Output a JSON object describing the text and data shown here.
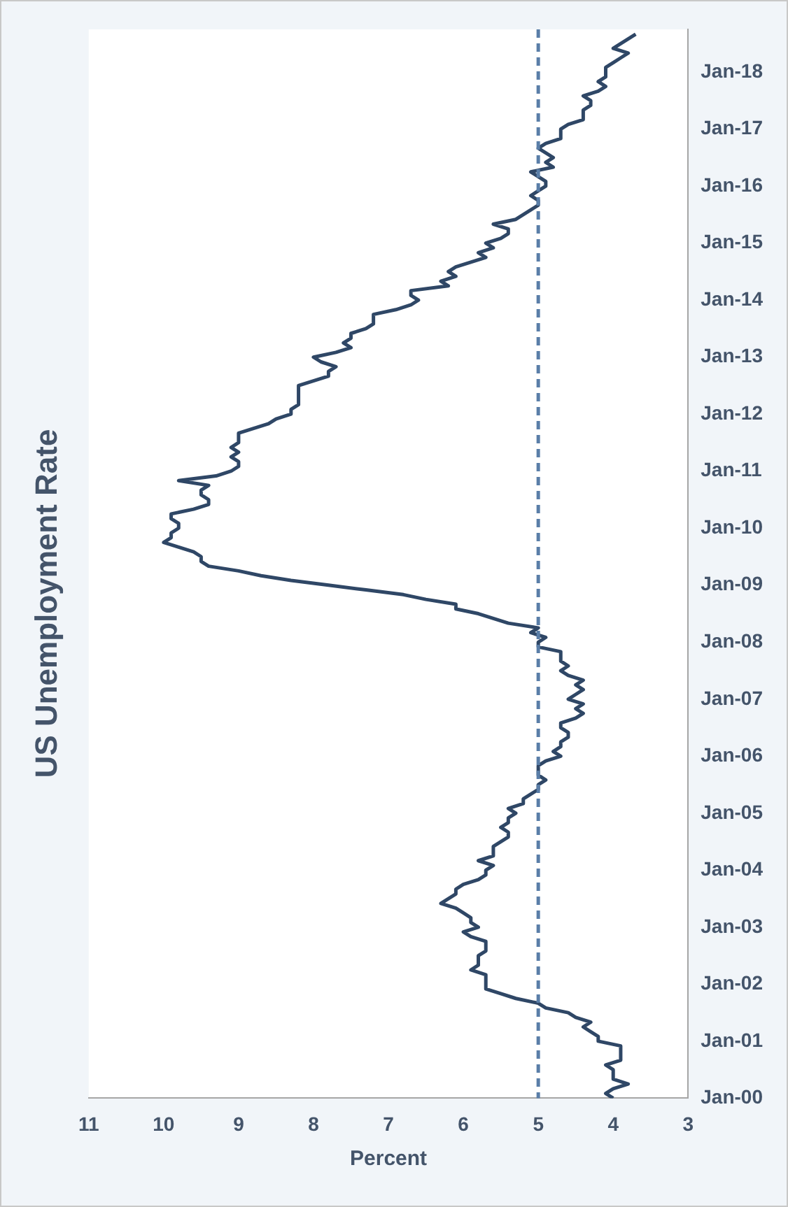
{
  "chart_data": {
    "type": "line",
    "title": "US Unemployment Rate",
    "x": [
      "2000-01",
      "2000-02",
      "2000-03",
      "2000-04",
      "2000-05",
      "2000-06",
      "2000-07",
      "2000-08",
      "2000-09",
      "2000-10",
      "2000-11",
      "2000-12",
      "2001-01",
      "2001-02",
      "2001-03",
      "2001-04",
      "2001-05",
      "2001-06",
      "2001-07",
      "2001-08",
      "2001-09",
      "2001-10",
      "2001-11",
      "2001-12",
      "2002-01",
      "2002-02",
      "2002-03",
      "2002-04",
      "2002-05",
      "2002-06",
      "2002-07",
      "2002-08",
      "2002-09",
      "2002-10",
      "2002-11",
      "2002-12",
      "2003-01",
      "2003-02",
      "2003-03",
      "2003-04",
      "2003-05",
      "2003-06",
      "2003-07",
      "2003-08",
      "2003-09",
      "2003-10",
      "2003-11",
      "2003-12",
      "2004-01",
      "2004-02",
      "2004-03",
      "2004-04",
      "2004-05",
      "2004-06",
      "2004-07",
      "2004-08",
      "2004-09",
      "2004-10",
      "2004-11",
      "2004-12",
      "2005-01",
      "2005-02",
      "2005-03",
      "2005-04",
      "2005-05",
      "2005-06",
      "2005-07",
      "2005-08",
      "2005-09",
      "2005-10",
      "2005-11",
      "2005-12",
      "2006-01",
      "2006-02",
      "2006-03",
      "2006-04",
      "2006-05",
      "2006-06",
      "2006-07",
      "2006-08",
      "2006-09",
      "2006-10",
      "2006-11",
      "2006-12",
      "2007-01",
      "2007-02",
      "2007-03",
      "2007-04",
      "2007-05",
      "2007-06",
      "2007-07",
      "2007-08",
      "2007-09",
      "2007-10",
      "2007-11",
      "2007-12",
      "2008-01",
      "2008-02",
      "2008-03",
      "2008-04",
      "2008-05",
      "2008-06",
      "2008-07",
      "2008-08",
      "2008-09",
      "2008-10",
      "2008-11",
      "2008-12",
      "2009-01",
      "2009-02",
      "2009-03",
      "2009-04",
      "2009-05",
      "2009-06",
      "2009-07",
      "2009-08",
      "2009-09",
      "2009-10",
      "2009-11",
      "2009-12",
      "2010-01",
      "2010-02",
      "2010-03",
      "2010-04",
      "2010-05",
      "2010-06",
      "2010-07",
      "2010-08",
      "2010-09",
      "2010-10",
      "2010-11",
      "2010-12",
      "2011-01",
      "2011-02",
      "2011-03",
      "2011-04",
      "2011-05",
      "2011-06",
      "2011-07",
      "2011-08",
      "2011-09",
      "2011-10",
      "2011-11",
      "2011-12",
      "2012-01",
      "2012-02",
      "2012-03",
      "2012-04",
      "2012-05",
      "2012-06",
      "2012-07",
      "2012-08",
      "2012-09",
      "2012-10",
      "2012-11",
      "2012-12",
      "2013-01",
      "2013-02",
      "2013-03",
      "2013-04",
      "2013-05",
      "2013-06",
      "2013-07",
      "2013-08",
      "2013-09",
      "2013-10",
      "2013-11",
      "2013-12",
      "2014-01",
      "2014-02",
      "2014-03",
      "2014-04",
      "2014-05",
      "2014-06",
      "2014-07",
      "2014-08",
      "2014-09",
      "2014-10",
      "2014-11",
      "2014-12",
      "2015-01",
      "2015-02",
      "2015-03",
      "2015-04",
      "2015-05",
      "2015-06",
      "2015-07",
      "2015-08",
      "2015-09",
      "2015-10",
      "2015-11",
      "2015-12",
      "2016-01",
      "2016-02",
      "2016-03",
      "2016-04",
      "2016-05",
      "2016-06",
      "2016-07",
      "2016-08",
      "2016-09",
      "2016-10",
      "2016-11",
      "2016-12",
      "2017-01",
      "2017-02",
      "2017-03",
      "2017-04",
      "2017-05",
      "2017-06",
      "2017-07",
      "2017-08",
      "2017-09",
      "2017-10",
      "2017-11",
      "2017-12",
      "2018-01",
      "2018-02",
      "2018-03",
      "2018-04",
      "2018-05",
      "2018-06",
      "2018-07",
      "2018-08",
      "2018-09"
    ],
    "series": [
      {
        "color": "#2f4766",
        "values": [
          4.0,
          4.1,
          4.0,
          3.8,
          4.0,
          4.0,
          4.0,
          4.1,
          3.9,
          3.9,
          3.9,
          3.9,
          4.2,
          4.2,
          4.3,
          4.4,
          4.3,
          4.5,
          4.6,
          4.9,
          5.0,
          5.3,
          5.5,
          5.7,
          5.7,
          5.7,
          5.7,
          5.9,
          5.8,
          5.8,
          5.8,
          5.7,
          5.7,
          5.7,
          5.9,
          6.0,
          5.8,
          5.9,
          5.9,
          6.0,
          6.1,
          6.3,
          6.2,
          6.1,
          6.1,
          6.0,
          5.8,
          5.7,
          5.7,
          5.6,
          5.8,
          5.6,
          5.6,
          5.6,
          5.5,
          5.4,
          5.4,
          5.5,
          5.4,
          5.4,
          5.3,
          5.4,
          5.2,
          5.2,
          5.1,
          5.0,
          5.0,
          4.9,
          5.0,
          5.0,
          5.0,
          4.9,
          4.7,
          4.8,
          4.7,
          4.7,
          4.6,
          4.6,
          4.7,
          4.7,
          4.5,
          4.4,
          4.5,
          4.4,
          4.6,
          4.5,
          4.4,
          4.5,
          4.4,
          4.6,
          4.7,
          4.6,
          4.7,
          4.7,
          4.7,
          5.0,
          5.0,
          4.9,
          5.1,
          5.0,
          5.4,
          5.6,
          5.8,
          6.1,
          6.1,
          6.5,
          6.8,
          7.3,
          7.8,
          8.3,
          8.7,
          9.0,
          9.4,
          9.5,
          9.5,
          9.6,
          9.8,
          10.0,
          9.9,
          9.9,
          9.8,
          9.8,
          9.9,
          9.9,
          9.6,
          9.4,
          9.4,
          9.5,
          9.5,
          9.4,
          9.8,
          9.3,
          9.1,
          9.0,
          9.0,
          9.1,
          9.0,
          9.1,
          9.0,
          9.0,
          9.0,
          8.8,
          8.6,
          8.5,
          8.3,
          8.3,
          8.2,
          8.2,
          8.2,
          8.2,
          8.2,
          8.0,
          7.8,
          7.8,
          7.7,
          7.9,
          8.0,
          7.7,
          7.5,
          7.6,
          7.5,
          7.5,
          7.3,
          7.2,
          7.2,
          7.2,
          6.9,
          6.7,
          6.6,
          6.7,
          6.7,
          6.2,
          6.3,
          6.1,
          6.2,
          6.1,
          5.9,
          5.7,
          5.8,
          5.6,
          5.7,
          5.5,
          5.4,
          5.4,
          5.6,
          5.3,
          5.2,
          5.1,
          5.0,
          5.0,
          5.1,
          5.0,
          4.9,
          4.9,
          5.0,
          5.1,
          4.8,
          4.9,
          4.8,
          4.9,
          5.0,
          4.9,
          4.7,
          4.7,
          4.7,
          4.6,
          4.4,
          4.4,
          4.4,
          4.3,
          4.3,
          4.4,
          4.2,
          4.1,
          4.2,
          4.1,
          4.1,
          4.1,
          4.0,
          3.9,
          3.8,
          4.0,
          3.9,
          3.8,
          3.7
        ]
      }
    ],
    "orientation": "horizontal",
    "xlabel": "Percent",
    "ylim": [
      "2000-01",
      "2018-10"
    ],
    "yticks": [
      {
        "value": "2000-01",
        "label": "Jan-00"
      },
      {
        "value": "2001-01",
        "label": "Jan-01"
      },
      {
        "value": "2002-01",
        "label": "Jan-02"
      },
      {
        "value": "2003-01",
        "label": "Jan-03"
      },
      {
        "value": "2004-01",
        "label": "Jan-04"
      },
      {
        "value": "2005-01",
        "label": "Jan-05"
      },
      {
        "value": "2006-01",
        "label": "Jan-06"
      },
      {
        "value": "2007-01",
        "label": "Jan-07"
      },
      {
        "value": "2008-01",
        "label": "Jan-08"
      },
      {
        "value": "2009-01",
        "label": "Jan-09"
      },
      {
        "value": "2010-01",
        "label": "Jan-10"
      },
      {
        "value": "2011-01",
        "label": "Jan-11"
      },
      {
        "value": "2012-01",
        "label": "Jan-12"
      },
      {
        "value": "2013-01",
        "label": "Jan-13"
      },
      {
        "value": "2014-01",
        "label": "Jan-14"
      },
      {
        "value": "2015-01",
        "label": "Jan-15"
      },
      {
        "value": "2016-01",
        "label": "Jan-16"
      },
      {
        "value": "2017-01",
        "label": "Jan-17"
      },
      {
        "value": "2018-01",
        "label": "Jan-18"
      }
    ],
    "xlim": [
      11,
      3
    ],
    "xticks": [
      11,
      10,
      9,
      8,
      7,
      6,
      5,
      4,
      3
    ],
    "ref_lines": [
      {
        "axis": "x",
        "value": 5,
        "color": "#5a7ea8",
        "line_style": "dashed"
      }
    ],
    "grid": false,
    "legend": false,
    "marker": "none",
    "line_style": "solid"
  }
}
